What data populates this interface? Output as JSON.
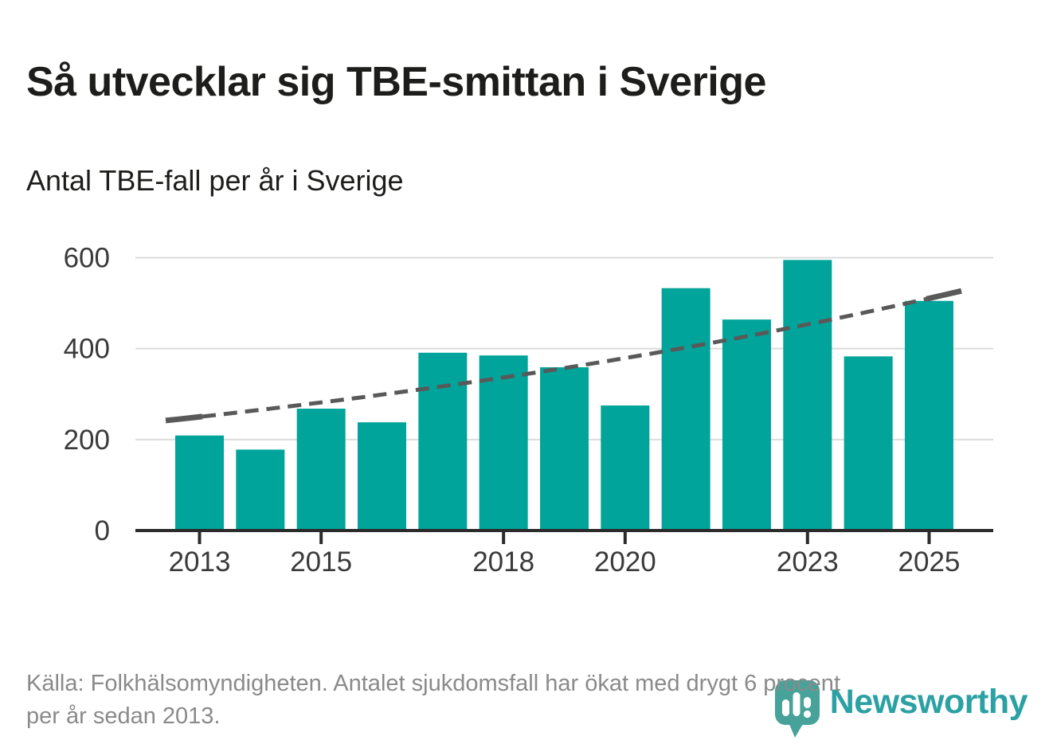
{
  "header": {
    "title": "Så utvecklar sig TBE-smittan i Sverige",
    "subtitle": "Antal TBE-fall per år i Sverige"
  },
  "chart_data": {
    "type": "bar",
    "title": "Så utvecklar sig TBE-smittan i Sverige",
    "subtitle": "Antal TBE-fall per år i Sverige",
    "xlabel": "",
    "ylabel": "",
    "categories": [
      2013,
      2014,
      2015,
      2016,
      2017,
      2018,
      2019,
      2020,
      2021,
      2022,
      2023,
      2024,
      2025
    ],
    "values": [
      209,
      178,
      268,
      238,
      391,
      385,
      359,
      275,
      533,
      464,
      595,
      383,
      505
    ],
    "series_name": "Antal TBE-fall per år",
    "ylim": [
      0,
      620
    ],
    "yticks": [
      0,
      200,
      400,
      600
    ],
    "xtick_labels": [
      "2013",
      "2015",
      "2018",
      "2020",
      "2023",
      "2025"
    ],
    "grid": "horizontal",
    "legend": "none",
    "trend": {
      "style": "dashed-with-solid-endcaps",
      "shape": "exponential",
      "start_value": 250,
      "end_value": 527
    },
    "colors": {
      "bar": "#00a49a",
      "trend": "#595959",
      "gridline": "#dcdcdc",
      "axis": "#2b2b2b",
      "tick_label": "#3a3a3a"
    }
  },
  "footer": {
    "source_line1": "Källa: Folkhälsomyndigheten. Antalet sjukdomsfall har ökat med drygt 6 procent",
    "source_line2": "per år sedan 2013.",
    "logo_text": "Newsworthy",
    "logo_icon": "newsworthy-bubble-barchart-icon",
    "logo_color": "#2ba1a4",
    "logo_icon_color": "#47a29a"
  }
}
